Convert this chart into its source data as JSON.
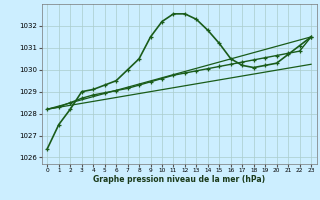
{
  "background_color": "#cceeff",
  "grid_color": "#aacccc",
  "line_color": "#1a5c1a",
  "xlabel": "Graphe pression niveau de la mer (hPa)",
  "xlim": [
    -0.5,
    23.5
  ],
  "ylim": [
    1025.7,
    1033.0
  ],
  "yticks": [
    1026,
    1027,
    1028,
    1029,
    1030,
    1031,
    1032
  ],
  "xticks": [
    0,
    1,
    2,
    3,
    4,
    5,
    6,
    7,
    8,
    9,
    10,
    11,
    12,
    13,
    14,
    15,
    16,
    17,
    18,
    19,
    20,
    21,
    22,
    23
  ],
  "series": [
    {
      "x": [
        0,
        1,
        2,
        3,
        4,
        5,
        6,
        7,
        8,
        9,
        10,
        11,
        12,
        13,
        14,
        15,
        16,
        17,
        18,
        19,
        20,
        21,
        22,
        23
      ],
      "y": [
        1026.4,
        1027.5,
        1028.2,
        1029.0,
        1029.1,
        1029.3,
        1029.5,
        1030.0,
        1030.5,
        1031.5,
        1032.2,
        1032.55,
        1032.55,
        1032.3,
        1031.8,
        1031.2,
        1030.5,
        1030.2,
        1030.1,
        1030.2,
        1030.3,
        1030.7,
        1031.1,
        1031.5
      ],
      "marker": true,
      "linewidth": 1.2
    },
    {
      "x": [
        0,
        1,
        2,
        3,
        4,
        5,
        6,
        7,
        8,
        9,
        10,
        11,
        12,
        13,
        14,
        15,
        16,
        17,
        18,
        19,
        20,
        21,
        22,
        23
      ],
      "y": [
        1028.2,
        1028.3,
        1028.5,
        1028.7,
        1028.85,
        1028.95,
        1029.05,
        1029.15,
        1029.3,
        1029.45,
        1029.6,
        1029.75,
        1029.85,
        1029.95,
        1030.05,
        1030.15,
        1030.25,
        1030.35,
        1030.45,
        1030.55,
        1030.65,
        1030.75,
        1030.85,
        1031.5
      ],
      "marker": true,
      "linewidth": 1.0
    },
    {
      "x": [
        0,
        23
      ],
      "y": [
        1028.2,
        1031.5
      ],
      "marker": false,
      "linewidth": 0.9
    },
    {
      "x": [
        0,
        23
      ],
      "y": [
        1028.2,
        1030.25
      ],
      "marker": false,
      "linewidth": 0.9
    }
  ]
}
